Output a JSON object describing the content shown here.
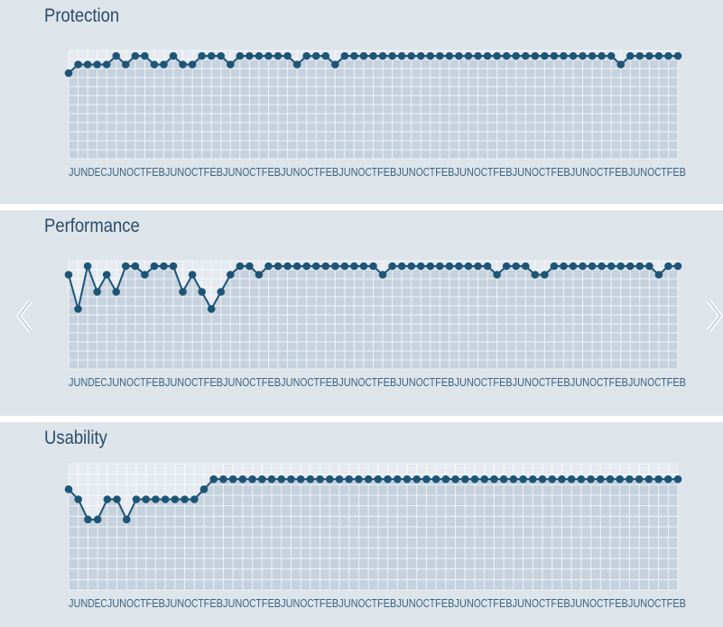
{
  "colors": {
    "panel_bg": "#dde4ea",
    "plot_bg": "#c5d1dd",
    "grid": "#eef2f6",
    "line": "#1d5577",
    "title": "#2a4d6a",
    "ticks": "#3a6585",
    "arrow": "#ffffff"
  },
  "nav": {
    "prev_icon": "chevron-left-icon",
    "next_icon": "chevron-right-icon"
  },
  "chart_data": [
    {
      "type": "line",
      "title": "Protection",
      "x_ticks": [
        "JUN",
        "DEC",
        "JUN",
        "OCT",
        "FEB",
        "JUN",
        "OCT",
        "FEB",
        "JUN",
        "OCT",
        "FEB",
        "JUN",
        "OCT",
        "FEB",
        "JUN",
        "OCT",
        "FEB",
        "JUN",
        "OCT",
        "FEB",
        "JUN",
        "OCT",
        "FEB",
        "JUN",
        "OCT",
        "FEB",
        "JUN",
        "OCT",
        "FEB",
        "JUN",
        "OCT",
        "FEB"
      ],
      "ylim": [
        0,
        6
      ],
      "grid": true,
      "values": [
        5,
        5.5,
        5.5,
        5.5,
        5.5,
        6,
        5.5,
        6,
        6,
        5.5,
        5.5,
        6,
        5.5,
        5.5,
        6,
        6,
        6,
        5.5,
        6,
        6,
        6,
        6,
        6,
        6,
        5.5,
        6,
        6,
        6,
        5.5,
        6,
        6,
        6,
        6,
        6,
        6,
        6,
        6,
        6,
        6,
        6,
        6,
        6,
        6,
        6,
        6,
        6,
        6,
        6,
        6,
        6,
        6,
        6,
        6,
        6,
        6,
        6,
        6,
        6,
        5.5,
        6,
        6,
        6,
        6,
        6,
        6
      ]
    },
    {
      "type": "line",
      "title": "Performance",
      "x_ticks": [
        "JUN",
        "DEC",
        "JUN",
        "OCT",
        "FEB",
        "JUN",
        "OCT",
        "FEB",
        "JUN",
        "OCT",
        "FEB",
        "JUN",
        "OCT",
        "FEB",
        "JUN",
        "OCT",
        "FEB",
        "JUN",
        "OCT",
        "FEB",
        "JUN",
        "OCT",
        "FEB",
        "JUN",
        "OCT",
        "FEB",
        "JUN",
        "OCT",
        "FEB",
        "JUN",
        "OCT",
        "FEB"
      ],
      "ylim": [
        0,
        6
      ],
      "grid": true,
      "values": [
        5.5,
        3.5,
        6,
        4.5,
        5.5,
        4.5,
        6,
        6,
        5.5,
        6,
        6,
        6,
        4.5,
        5.5,
        4.5,
        3.5,
        4.5,
        5.5,
        6,
        6,
        5.5,
        6,
        6,
        6,
        6,
        6,
        6,
        6,
        6,
        6,
        6,
        6,
        6,
        5.5,
        6,
        6,
        6,
        6,
        6,
        6,
        6,
        6,
        6,
        6,
        6,
        5.5,
        6,
        6,
        6,
        5.5,
        5.5,
        6,
        6,
        6,
        6,
        6,
        6,
        6,
        6,
        6,
        6,
        6,
        5.5,
        6,
        6
      ]
    },
    {
      "type": "line",
      "title": "Usability",
      "x_ticks": [
        "JUN",
        "DEC",
        "JUN",
        "OCT",
        "FEB",
        "JUN",
        "OCT",
        "FEB",
        "JUN",
        "OCT",
        "FEB",
        "JUN",
        "OCT",
        "FEB",
        "JUN",
        "OCT",
        "FEB",
        "JUN",
        "OCT",
        "FEB",
        "JUN",
        "OCT",
        "FEB",
        "JUN",
        "OCT",
        "FEB",
        "JUN",
        "OCT",
        "FEB",
        "JUN",
        "OCT",
        "FEB"
      ],
      "ylim": [
        0,
        6
      ],
      "grid": true,
      "values": [
        5,
        4.5,
        3.5,
        3.5,
        4.5,
        4.5,
        3.5,
        4.5,
        4.5,
        4.5,
        4.5,
        4.5,
        4.5,
        4.5,
        5,
        5.5,
        5.5,
        5.5,
        5.5,
        5.5,
        5.5,
        5.5,
        5.5,
        5.5,
        5.5,
        5.5,
        5.5,
        5.5,
        5.5,
        5.5,
        5.5,
        5.5,
        5.5,
        5.5,
        5.5,
        5.5,
        5.5,
        5.5,
        5.5,
        5.5,
        5.5,
        5.5,
        5.5,
        5.5,
        5.5,
        5.5,
        5.5,
        5.5,
        5.5,
        5.5,
        5.5,
        5.5,
        5.5,
        5.5,
        5.5,
        5.5,
        5.5,
        5.5,
        5.5,
        5.5,
        5.5,
        5.5,
        5.5,
        5.5
      ]
    }
  ]
}
